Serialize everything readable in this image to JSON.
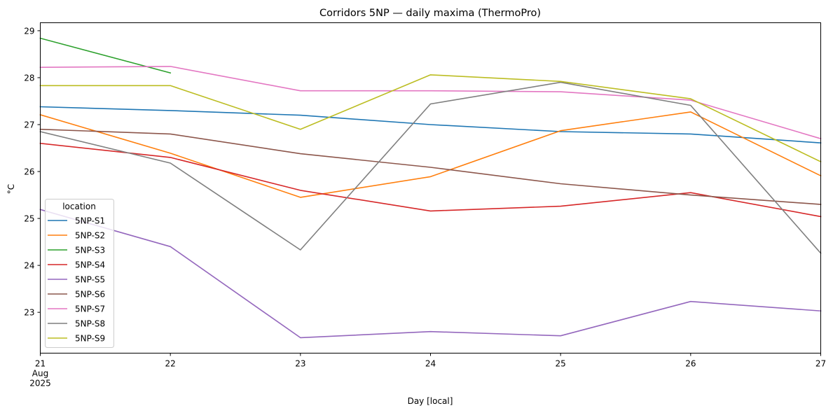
{
  "chart_data": {
    "type": "line",
    "title": "Corridors 5NP — daily maxima (ThermoPro)",
    "xlabel": "Day [local]",
    "ylabel": "°C",
    "x": [
      "2025-08-21",
      "2025-08-22",
      "2025-08-23",
      "2025-08-24",
      "2025-08-25",
      "2025-08-26",
      "2025-08-27"
    ],
    "xticks": [
      {
        "lines": [
          "21",
          "Aug",
          "2025"
        ]
      },
      {
        "lines": [
          "22"
        ]
      },
      {
        "lines": [
          "23"
        ]
      },
      {
        "lines": [
          "24"
        ]
      },
      {
        "lines": [
          "25"
        ]
      },
      {
        "lines": [
          "26"
        ]
      },
      {
        "lines": [
          "27"
        ]
      }
    ],
    "yticks": [
      23,
      24,
      25,
      26,
      27,
      28,
      29
    ],
    "ylim": [
      22.13,
      29.17
    ],
    "grid": false,
    "legend": {
      "title": "location",
      "placement": "lower-left"
    },
    "series": [
      {
        "name": "5NP-S1",
        "color": "#1f77b4",
        "values": [
          27.38,
          27.3,
          27.2,
          27.0,
          26.85,
          26.8,
          26.61
        ]
      },
      {
        "name": "5NP-S2",
        "color": "#ff7f0e",
        "values": [
          27.21,
          26.39,
          25.45,
          25.89,
          26.87,
          27.27,
          25.91
        ]
      },
      {
        "name": "5NP-S3",
        "color": "#2ca02c",
        "values": [
          28.84,
          28.1,
          null,
          null,
          null,
          null,
          null
        ]
      },
      {
        "name": "5NP-S4",
        "color": "#d62728",
        "values": [
          26.6,
          26.3,
          25.6,
          25.16,
          25.26,
          25.55,
          25.04
        ]
      },
      {
        "name": "5NP-S5",
        "color": "#9467bd",
        "values": [
          25.19,
          24.4,
          22.46,
          22.59,
          22.5,
          23.23,
          23.03
        ]
      },
      {
        "name": "5NP-S6",
        "color": "#8c564b",
        "values": [
          26.9,
          26.8,
          26.38,
          26.09,
          25.74,
          25.5,
          25.3
        ]
      },
      {
        "name": "5NP-S7",
        "color": "#e377c2",
        "values": [
          28.22,
          28.24,
          27.72,
          27.72,
          27.7,
          27.52,
          26.7
        ]
      },
      {
        "name": "5NP-S8",
        "color": "#7f7f7f",
        "values": [
          26.85,
          26.18,
          24.33,
          27.44,
          27.9,
          27.41,
          24.26
        ]
      },
      {
        "name": "5NP-S9",
        "color": "#bcbd22",
        "values": [
          27.83,
          27.83,
          26.9,
          28.06,
          27.92,
          27.55,
          26.21
        ]
      }
    ]
  }
}
